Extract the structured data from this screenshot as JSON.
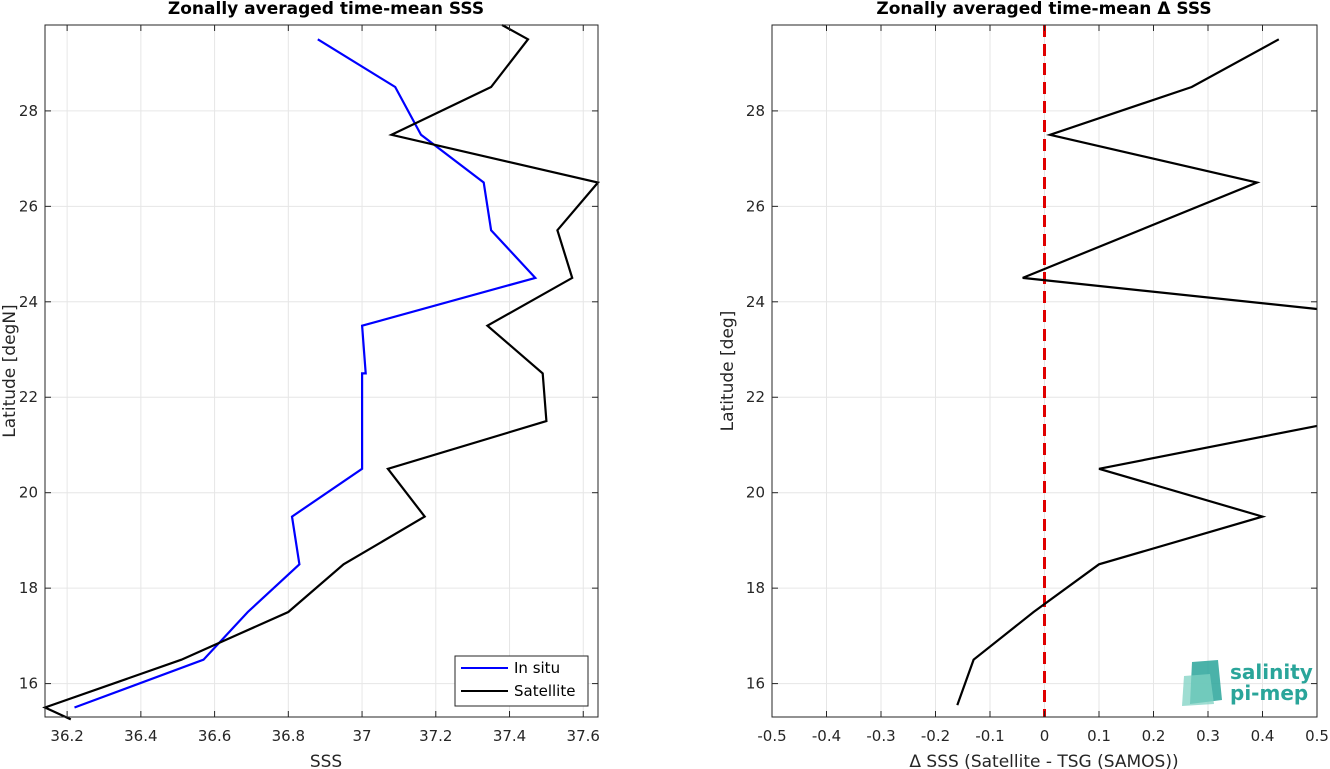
{
  "chart_data": [
    {
      "type": "line",
      "title": "Zonally averaged time-mean SSS",
      "xlabel": "SSS",
      "ylabel": "Latitude [degN]",
      "xlim": [
        36.14,
        37.64
      ],
      "ylim": [
        15.3,
        29.8
      ],
      "xticks": [
        "36.2",
        "36.4",
        "36.6",
        "36.8",
        "37",
        "37.2",
        "37.4",
        "37.6"
      ],
      "yticks": [
        "16",
        "18",
        "20",
        "22",
        "24",
        "26",
        "28"
      ],
      "grid": true,
      "legend_position": "bottom-right",
      "series": [
        {
          "name": "In situ",
          "color": "#0000ff",
          "x": [
            36.22,
            36.57,
            36.69,
            36.83,
            36.81,
            37.0,
            37.0,
            37.0,
            37.01,
            37.0,
            37.47,
            37.35,
            37.33,
            37.16,
            37.09,
            36.88
          ],
          "y": [
            15.5,
            16.5,
            17.5,
            18.5,
            19.5,
            20.5,
            21.5,
            22.5,
            22.5,
            23.5,
            24.5,
            25.5,
            26.5,
            27.5,
            28.5,
            29.5
          ]
        },
        {
          "name": "Satellite",
          "color": "#000000",
          "x": [
            36.21,
            36.14,
            36.51,
            36.8,
            36.95,
            37.17,
            37.07,
            37.5,
            37.49,
            37.34,
            37.57,
            37.53,
            37.64,
            37.08,
            37.35,
            37.45,
            37.38
          ],
          "y": [
            15.25,
            15.5,
            16.5,
            17.5,
            18.5,
            19.5,
            20.5,
            21.5,
            22.5,
            23.5,
            24.5,
            25.5,
            26.5,
            27.5,
            28.5,
            29.5,
            29.8
          ]
        }
      ]
    },
    {
      "type": "line",
      "title": "Zonally averaged time-mean Δ SSS",
      "xlabel": "Δ SSS (Satellite - TSG (SAMOS))",
      "ylabel": "Latitude [deg]",
      "xlim": [
        -0.5,
        0.5
      ],
      "ylim": [
        15.3,
        29.8
      ],
      "xticks": [
        "-0.5",
        "-0.4",
        "-0.3",
        "-0.2",
        "-0.1",
        "0",
        "0.1",
        "0.2",
        "0.3",
        "0.4",
        "0.5"
      ],
      "yticks": [
        "16",
        "18",
        "20",
        "22",
        "24",
        "26",
        "28"
      ],
      "grid": true,
      "reference_line": {
        "x": 0,
        "color": "#e00000",
        "style": "dashed"
      },
      "series": [
        {
          "color": "#000000",
          "x": [
            -0.16,
            -0.13,
            -0.02,
            0.1,
            0.4,
            0.1,
            0.5
          ],
          "y": [
            15.55,
            16.5,
            17.5,
            18.5,
            19.5,
            20.5,
            21.4
          ]
        },
        {
          "color": "#000000",
          "x": [
            0.5,
            -0.04,
            0.39,
            0.01,
            0.27,
            0.43
          ],
          "y": [
            23.85,
            24.5,
            26.5,
            27.5,
            28.5,
            29.5
          ]
        }
      ]
    }
  ],
  "logo": {
    "line1": "salinity",
    "line2": "pi-mep",
    "accent": "#2aa59a"
  }
}
